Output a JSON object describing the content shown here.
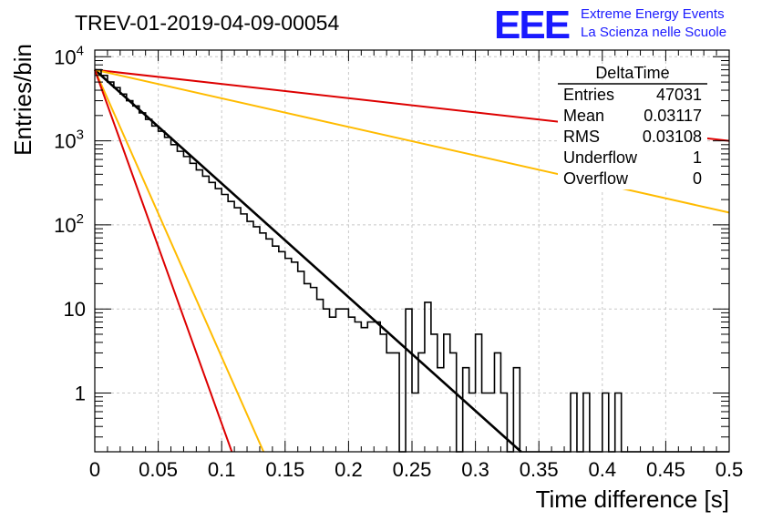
{
  "chart_data": {
    "type": "histogram",
    "title": "TREV-01-2019-04-09-00054",
    "logo": {
      "text": "EEE",
      "line1": "Extreme Energy Events",
      "line2": "La Scienza nelle Scuole"
    },
    "xlabel": "Time difference [s]",
    "ylabel": "Entries/bin",
    "xlim": [
      0,
      0.5
    ],
    "ylim": [
      0.2,
      12000
    ],
    "yscale": "log",
    "grid": true,
    "xticks": [
      "0",
      "0.05",
      "0.1",
      "0.15",
      "0.2",
      "0.25",
      "0.3",
      "0.35",
      "0.4",
      "0.45",
      "0.5"
    ],
    "yticks": [
      {
        "value": 1,
        "label": "1"
      },
      {
        "value": 10,
        "label": "10"
      },
      {
        "value": 100,
        "label": "10",
        "exp": "2"
      },
      {
        "value": 1000,
        "label": "10",
        "exp": "3"
      },
      {
        "value": 10000,
        "label": "10",
        "exp": "4"
      }
    ],
    "stats": {
      "title": "DeltaTime",
      "rows": [
        {
          "label": "Entries",
          "value": "47031"
        },
        {
          "label": "Mean",
          "value": "0.03117"
        },
        {
          "label": "RMS",
          "value": "0.03108"
        },
        {
          "label": "Underflow",
          "value": "1"
        },
        {
          "label": "Overflow",
          "value": "0"
        }
      ]
    },
    "histogram": {
      "bin_width": 0.005,
      "x_start": 0,
      "counts": [
        7000,
        6000,
        5000,
        4300,
        3600,
        3000,
        2600,
        2150,
        1800,
        1500,
        1300,
        1100,
        900,
        750,
        650,
        540,
        450,
        380,
        320,
        270,
        230,
        190,
        160,
        135,
        110,
        95,
        80,
        68,
        56,
        48,
        40,
        36,
        28,
        20,
        18,
        13,
        10,
        8,
        10,
        10,
        8,
        7,
        6,
        7,
        7,
        5,
        3,
        3,
        0,
        10,
        1,
        3,
        12,
        5,
        2,
        5,
        3,
        0,
        2,
        1,
        5,
        1,
        1,
        3,
        1,
        0,
        2,
        0,
        0,
        0,
        0,
        0,
        0,
        0,
        0,
        1,
        0,
        1,
        0,
        0,
        1,
        0,
        1,
        0,
        0,
        0,
        0,
        0,
        0,
        0,
        0,
        0,
        0,
        0,
        0,
        0,
        0,
        0,
        0,
        0
      ],
      "color": "#000000"
    },
    "fit_lines": [
      {
        "color": "#000000",
        "x": [
          0,
          0.336
        ],
        "y": [
          7000,
          0.2
        ]
      },
      {
        "color": "#dd0000",
        "x": [
          0,
          0.5
        ],
        "y": [
          7000,
          1000
        ]
      },
      {
        "color": "#ffbb00",
        "x": [
          0,
          0.5
        ],
        "y": [
          7000,
          140
        ]
      },
      {
        "color": "#ffbb00",
        "x": [
          0,
          0.133
        ],
        "y": [
          7000,
          0.2
        ]
      },
      {
        "color": "#dd0000",
        "x": [
          0,
          0.108
        ],
        "y": [
          7000,
          0.2
        ]
      }
    ]
  }
}
